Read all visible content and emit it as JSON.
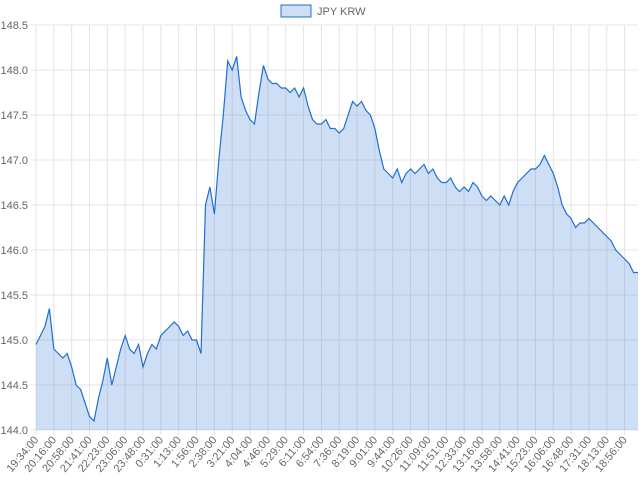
{
  "chart_data": {
    "type": "area",
    "legend": "top",
    "grid": true,
    "categories": [
      "19:34:00",
      null,
      null,
      null,
      "20:16:00",
      null,
      null,
      null,
      "20:58:00",
      null,
      null,
      null,
      "21:41:00",
      null,
      null,
      null,
      "22:23:00",
      null,
      null,
      null,
      "23:06:00",
      null,
      null,
      null,
      "23:48:00",
      null,
      null,
      null,
      "0:31:00",
      null,
      null,
      null,
      "1:13:00",
      null,
      null,
      null,
      "1:56:00",
      null,
      null,
      null,
      "2:38:00",
      null,
      null,
      null,
      "3:21:00",
      null,
      null,
      null,
      "4:04:00",
      null,
      null,
      null,
      "4:46:00",
      null,
      null,
      null,
      "5:29:00",
      null,
      null,
      null,
      "6:11:00",
      null,
      null,
      null,
      "6:54:00",
      null,
      null,
      null,
      "7:36:00",
      null,
      null,
      null,
      "8:19:00",
      null,
      null,
      null,
      "9:01:00",
      null,
      null,
      null,
      "9:44:00",
      null,
      null,
      null,
      "10:26:00",
      null,
      null,
      null,
      "11:09:00",
      null,
      null,
      null,
      "11:51:00",
      null,
      null,
      null,
      "12:33:00",
      null,
      null,
      null,
      "13:16:00",
      null,
      null,
      null,
      "13:58:00",
      null,
      null,
      null,
      "14:41:00",
      null,
      null,
      null,
      "15:23:00",
      null,
      null,
      null,
      "16:06:00",
      null,
      null,
      null,
      "16:48:00",
      null,
      null,
      null,
      "17:31:00",
      null,
      null,
      null,
      "18:13:00",
      null,
      null,
      null,
      "18:56:00",
      null,
      null,
      null
    ],
    "series": [
      {
        "name": "JPY KRW",
        "color": "#1f6fd1",
        "values": [
          144.95,
          145.05,
          145.15,
          145.35,
          144.9,
          144.85,
          144.8,
          144.85,
          144.7,
          144.5,
          144.45,
          144.3,
          144.15,
          144.1,
          144.35,
          144.55,
          144.8,
          144.5,
          144.7,
          144.9,
          145.05,
          144.9,
          144.85,
          144.95,
          144.7,
          144.85,
          144.95,
          144.9,
          145.05,
          145.1,
          145.15,
          145.2,
          145.15,
          145.05,
          145.1,
          145.0,
          145.0,
          144.85,
          146.5,
          146.7,
          146.4,
          147.0,
          147.5,
          148.1,
          148.0,
          148.15,
          147.7,
          147.55,
          147.45,
          147.4,
          147.75,
          148.05,
          147.9,
          147.85,
          147.85,
          147.8,
          147.8,
          147.75,
          147.8,
          147.7,
          147.8,
          147.6,
          147.45,
          147.4,
          147.4,
          147.45,
          147.35,
          147.35,
          147.3,
          147.35,
          147.5,
          147.65,
          147.6,
          147.65,
          147.55,
          147.5,
          147.35,
          147.1,
          146.9,
          146.85,
          146.8,
          146.9,
          146.75,
          146.85,
          146.9,
          146.85,
          146.9,
          146.95,
          146.85,
          146.9,
          146.8,
          146.75,
          146.75,
          146.8,
          146.7,
          146.65,
          146.7,
          146.65,
          146.75,
          146.7,
          146.6,
          146.55,
          146.6,
          146.55,
          146.5,
          146.6,
          146.5,
          146.65,
          146.75,
          146.8,
          146.85,
          146.9,
          146.9,
          146.95,
          147.05,
          146.95,
          146.85,
          146.7,
          146.5,
          146.4,
          146.35,
          146.25,
          146.3,
          146.3,
          146.35,
          146.3,
          146.25,
          146.2,
          146.15,
          146.1,
          146.0,
          145.95,
          145.9,
          145.85,
          145.75,
          145.75
        ]
      }
    ],
    "ylim": [
      144.0,
      148.5
    ],
    "yticks": [
      {
        "value": 144.0,
        "label": "144.0"
      },
      {
        "value": 144.5,
        "label": "144.5"
      },
      {
        "value": 145.0,
        "label": "145.0"
      },
      {
        "value": 145.5,
        "label": "145.5"
      },
      {
        "value": 146.0,
        "label": "146.0"
      },
      {
        "value": 146.5,
        "label": "146.5"
      },
      {
        "value": 147.0,
        "label": "147.0"
      },
      {
        "value": 147.5,
        "label": "147.5"
      },
      {
        "value": 148.0,
        "label": "148.0"
      },
      {
        "value": 148.5,
        "label": "148.5"
      }
    ]
  }
}
